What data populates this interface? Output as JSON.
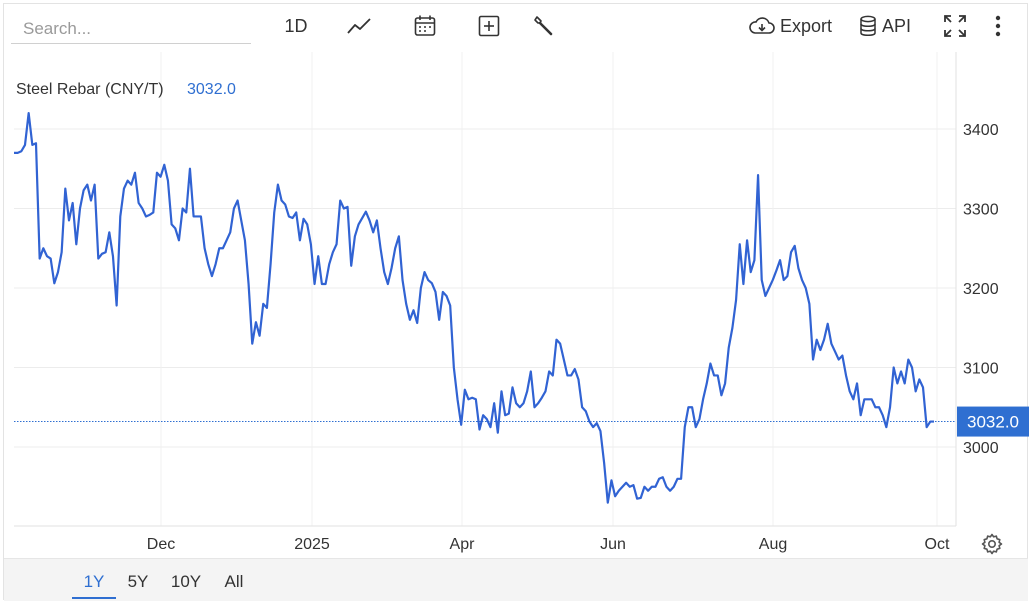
{
  "toolbar": {
    "search_placeholder": "Search...",
    "interval_label": "1D",
    "chart_type_icon": "line-chart-icon",
    "calendar_icon": "calendar-icon",
    "compare_icon": "plus-square-icon",
    "indicators_icon": "wrench-icon",
    "export_label": "Export",
    "export_icon": "cloud-download-icon",
    "api_label": "API",
    "api_icon": "database-icon",
    "fullscreen_icon": "expand-icon",
    "menu_icon": "more-vertical-icon"
  },
  "legend": {
    "name": "Steel Rebar (CNY/T)",
    "last_value": "3032.0"
  },
  "colors": {
    "line": "#3163d3",
    "accent": "#2f6fd1",
    "price_tag_bg": "#2f6fd1",
    "grid": "#ececec"
  },
  "settings_icon": "gear-icon",
  "ranges": [
    {
      "label": "1Y",
      "active": true
    },
    {
      "label": "5Y",
      "active": false
    },
    {
      "label": "10Y",
      "active": false
    },
    {
      "label": "All",
      "active": false
    }
  ],
  "chart_data": {
    "type": "line",
    "title": "Steel Rebar (CNY/T)",
    "last_value": 3032.0,
    "y_ticks": [
      3000,
      3100,
      3200,
      3300,
      3400
    ],
    "x_ticks": [
      "Dec",
      "2025",
      "Apr",
      "Jun",
      "Aug",
      "Oct"
    ],
    "ylim": [
      2920,
      3440
    ],
    "grid": true,
    "series": [
      {
        "values": [
          3370,
          3370,
          3372,
          3380,
          3420,
          3380,
          3382,
          3237,
          3250,
          3240,
          3237,
          3206,
          3220,
          3245,
          3325,
          3285,
          3307,
          3255,
          3300,
          3323,
          3330,
          3310,
          3330,
          3237,
          3243,
          3245,
          3270,
          3240,
          3178,
          3290,
          3325,
          3335,
          3330,
          3345,
          3307,
          3300,
          3290,
          3292,
          3295,
          3345,
          3340,
          3355,
          3335,
          3280,
          3275,
          3260,
          3300,
          3295,
          3350,
          3290,
          3290,
          3290,
          3250,
          3230,
          3215,
          3230,
          3250,
          3250,
          3260,
          3270,
          3300,
          3310,
          3285,
          3260,
          3205,
          3130,
          3157,
          3140,
          3180,
          3175,
          3230,
          3295,
          3330,
          3310,
          3305,
          3290,
          3288,
          3295,
          3260,
          3287,
          3280,
          3255,
          3205,
          3240,
          3205,
          3205,
          3230,
          3245,
          3255,
          3310,
          3300,
          3302,
          3228,
          3265,
          3280,
          3288,
          3296,
          3285,
          3270,
          3285,
          3250,
          3220,
          3205,
          3225,
          3250,
          3265,
          3210,
          3180,
          3160,
          3172,
          3156,
          3200,
          3220,
          3210,
          3206,
          3195,
          3160,
          3195,
          3190,
          3178,
          3100,
          3060,
          3028,
          3072,
          3060,
          3062,
          3060,
          3022,
          3040,
          3035,
          3025,
          3055,
          3018,
          3070,
          3040,
          3042,
          3075,
          3055,
          3050,
          3055,
          3070,
          3095,
          3050,
          3055,
          3062,
          3070,
          3095,
          3090,
          3135,
          3130,
          3110,
          3090,
          3090,
          3098,
          3085,
          3050,
          3045,
          3032,
          3025,
          3030,
          3020,
          2980,
          2930,
          2958,
          2938,
          2945,
          2950,
          2955,
          2950,
          2952,
          2935,
          2936,
          2950,
          2945,
          2950,
          2950,
          2960,
          2962,
          2950,
          2945,
          2950,
          2960,
          2960,
          3025,
          3050,
          3050,
          3025,
          3035,
          3060,
          3080,
          3105,
          3090,
          3090,
          3065,
          3080,
          3125,
          3150,
          3185,
          3255,
          3205,
          3260,
          3220,
          3235,
          3342,
          3210,
          3190,
          3200,
          3210,
          3222,
          3235,
          3210,
          3215,
          3245,
          3253,
          3225,
          3210,
          3200,
          3180,
          3110,
          3135,
          3122,
          3135,
          3155,
          3130,
          3120,
          3110,
          3115,
          3090,
          3070,
          3060,
          3080,
          3040,
          3060,
          3060,
          3060,
          3050,
          3050,
          3040,
          3025,
          3050,
          3100,
          3080,
          3095,
          3080,
          3110,
          3100,
          3070,
          3085,
          3075,
          3025,
          3032,
          3032
        ]
      }
    ]
  }
}
